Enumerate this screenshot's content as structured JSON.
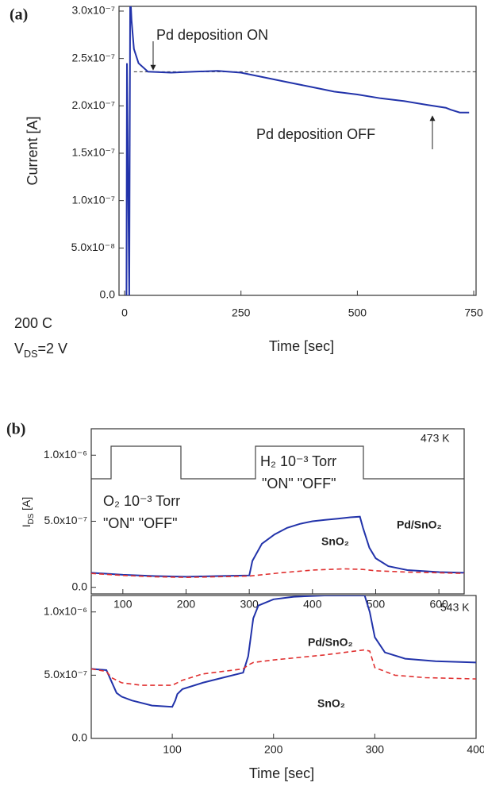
{
  "chart_data": [
    {
      "type": "line",
      "panel_label": "(a)",
      "xlabel": "Time [sec]",
      "ylabel": "Current [A]",
      "xlim": [
        -12,
        755
      ],
      "xticks": [
        0,
        250,
        500,
        750
      ],
      "ylim": [
        0,
        3.05e-07
      ],
      "yticks": [
        {
          "value": 0,
          "label": "0.0"
        },
        {
          "value": 5e-08,
          "label": "5.0x10⁻⁸"
        },
        {
          "value": 1e-07,
          "label": "1.0x10⁻⁷"
        },
        {
          "value": 1.5e-07,
          "label": "1.5x10⁻⁷"
        },
        {
          "value": 2e-07,
          "label": "2.0x10⁻⁷"
        },
        {
          "value": 2.5e-07,
          "label": "2.5x10⁻⁷"
        },
        {
          "value": 3e-07,
          "label": "3.0x10⁻⁷"
        }
      ],
      "hline": 2.36e-07,
      "x": [
        4,
        5,
        10,
        12,
        15,
        20,
        30,
        50,
        100,
        150,
        200,
        250,
        300,
        350,
        400,
        450,
        500,
        550,
        600,
        650,
        690,
        700,
        720,
        740
      ],
      "series": [
        {
          "color": "#2233aa",
          "values": [
            0,
            2.45e-07,
            0,
            3.2e-07,
            2.9e-07,
            2.6e-07,
            2.45e-07,
            2.36e-07,
            2.35e-07,
            2.36e-07,
            2.37e-07,
            2.35e-07,
            2.3e-07,
            2.25e-07,
            2.2e-07,
            2.15e-07,
            2.12e-07,
            2.08e-07,
            2.05e-07,
            2.01e-07,
            1.98e-07,
            1.96e-07,
            1.93e-07,
            1.93e-07
          ]
        }
      ],
      "annotations": [
        {
          "text": "Pd deposition ON"
        },
        {
          "text": "Pd deposition OFF"
        },
        {
          "text": "200 C"
        }
      ],
      "condition": {
        "symbol": "V",
        "sub": "DS",
        "rest": "=2 V"
      }
    },
    {
      "type": "line",
      "panel_label": "(b)",
      "xlim": [
        50,
        640
      ],
      "xticks": [
        100,
        200,
        300,
        400,
        500,
        600
      ],
      "ylim": [
        -5e-08,
        1.2e-06
      ],
      "yticks": [
        {
          "value": 0,
          "label": "0.0"
        },
        {
          "value": 5e-07,
          "label": "5.0x10⁻⁷"
        },
        {
          "value": 1e-06,
          "label": "1.0x10⁻⁶"
        }
      ],
      "series": [
        {
          "name": "Pd/SnO₂",
          "color": "#2233aa",
          "dash": false,
          "x": [
            50,
            100,
            150,
            200,
            250,
            300,
            305,
            320,
            340,
            360,
            380,
            400,
            420,
            440,
            460,
            475,
            480,
            490,
            500,
            520,
            550,
            600,
            640
          ],
          "values": [
            1.1e-07,
            9.5e-08,
            8.5e-08,
            8e-08,
            8.5e-08,
            9e-08,
            2e-07,
            3.3e-07,
            4e-07,
            4.5e-07,
            4.8e-07,
            5e-07,
            5.1e-07,
            5.2e-07,
            5.3e-07,
            5.35e-07,
            4.5e-07,
            3e-07,
            2.2e-07,
            1.6e-07,
            1.3e-07,
            1.15e-07,
            1.1e-07
          ]
        },
        {
          "name": "SnO₂",
          "color": "#e03030",
          "dash": true,
          "x": [
            50,
            100,
            150,
            200,
            250,
            300,
            350,
            400,
            450,
            480,
            500,
            550,
            600,
            640
          ],
          "values": [
            1.05e-07,
            9e-08,
            8e-08,
            7.5e-08,
            8e-08,
            8.5e-08,
            1.1e-07,
            1.3e-07,
            1.4e-07,
            1.35e-07,
            1.25e-07,
            1.15e-07,
            1.1e-07,
            1.05e-07
          ]
        }
      ],
      "annotations": [
        {
          "text": "473 K"
        },
        {
          "text": "O₂ 10⁻³ Torr"
        },
        {
          "text": "\"ON\"   \"OFF\""
        },
        {
          "text": "H₂ 10⁻³ Torr"
        },
        {
          "text": "\"ON\"    \"OFF\""
        }
      ]
    },
    {
      "type": "line",
      "xlabel": "Time [sec]",
      "ylabel": {
        "symbol": "I",
        "sub": "DS",
        "rest": " [A]"
      },
      "xlim": [
        20,
        400
      ],
      "xticks": [
        100,
        200,
        300,
        400
      ],
      "ylim": [
        0,
        1.13e-06
      ],
      "yticks": [
        {
          "value": 0,
          "label": "0.0"
        },
        {
          "value": 5e-07,
          "label": "5.0x10⁻⁷"
        },
        {
          "value": 1e-06,
          "label": "1.0x10⁻⁶"
        }
      ],
      "series": [
        {
          "name": "Pd/SnO₂",
          "color": "#2233aa",
          "dash": false,
          "x": [
            20,
            35,
            40,
            45,
            50,
            60,
            80,
            100,
            103,
            105,
            110,
            130,
            150,
            170,
            175,
            180,
            185,
            200,
            220,
            250,
            280,
            290,
            295,
            300,
            310,
            330,
            360,
            400
          ],
          "values": [
            5.5e-07,
            5.4e-07,
            4.5e-07,
            3.6e-07,
            3.3e-07,
            3e-07,
            2.6e-07,
            2.5e-07,
            3e-07,
            3.5e-07,
            3.9e-07,
            4.4e-07,
            4.8e-07,
            5.2e-07,
            6.5e-07,
            9.5e-07,
            1.05e-06,
            1.1e-06,
            1.12e-06,
            1.13e-06,
            1.13e-06,
            1.13e-06,
            1e-06,
            8e-07,
            6.8e-07,
            6.3e-07,
            6.1e-07,
            6e-07
          ]
        },
        {
          "name": "SnO₂",
          "color": "#e03030",
          "dash": true,
          "x": [
            20,
            35,
            40,
            50,
            70,
            100,
            110,
            130,
            150,
            170,
            175,
            180,
            200,
            250,
            290,
            295,
            300,
            320,
            350,
            400
          ],
          "values": [
            5.5e-07,
            5.3e-07,
            4.8e-07,
            4.4e-07,
            4.2e-07,
            4.2e-07,
            4.6e-07,
            5.1e-07,
            5.3e-07,
            5.5e-07,
            5.8e-07,
            6e-07,
            6.2e-07,
            6.6e-07,
            7e-07,
            6.9e-07,
            5.6e-07,
            5e-07,
            4.8e-07,
            4.7e-07
          ]
        }
      ],
      "annotations": [
        {
          "text": "543 K"
        }
      ]
    }
  ]
}
